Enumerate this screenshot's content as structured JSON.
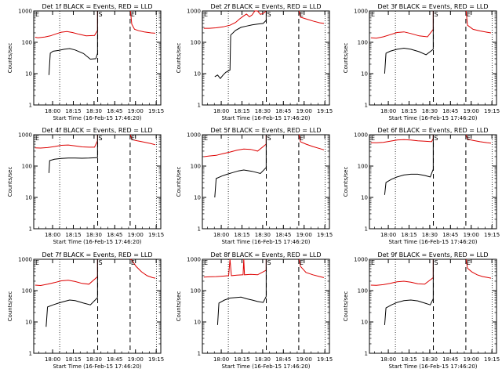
{
  "figure": {
    "layout": "3x3 grid",
    "colors": {
      "events": "#000000",
      "lld": "#dd0000",
      "axes": "#000000",
      "background": "#ffffff"
    },
    "ylabel": "Counts/sec",
    "xlabel": "Start Time (16-Feb-15 17:46:20)",
    "yticks": [
      "1",
      "10",
      "100",
      "1000"
    ],
    "xticks": [
      "18:00",
      "18:15",
      "18:30",
      "18:45",
      "19:00",
      "19:15"
    ],
    "markers": {
      "start": "E",
      "sun": "S",
      "end": "E"
    }
  },
  "chart_data": [
    {
      "type": "line",
      "title": "Det 1f BLACK = Events, RED = LLD",
      "xlabel": "Start Time (16-Feb-15 17:46:20)",
      "ylabel": "Counts/sec",
      "yscale": "log",
      "ylim": [
        1,
        1000
      ],
      "x_unit": "minutes from 17:46:20",
      "series": [
        {
          "key": "events",
          "x": [
            11,
            12,
            14,
            18,
            22,
            26,
            30,
            36,
            41,
            45,
            46.2
          ],
          "y": [
            9,
            45,
            52,
            55,
            60,
            63,
            57,
            44,
            29,
            30,
            45
          ]
        },
        {
          "key": "lld",
          "x": [
            1,
            3,
            8,
            12,
            16,
            20,
            24,
            28,
            33,
            38,
            44,
            46.2
          ],
          "y": [
            145,
            140,
            148,
            160,
            185,
            210,
            220,
            205,
            180,
            160,
            165,
            240
          ]
        }
      ],
      "dotted_lines_x": [
        18.8,
        88.8
      ],
      "dashed_lines_x": [
        46.3,
        69.8
      ],
      "lld_after": {
        "x": [
          71,
          73,
          76,
          80,
          85,
          88
        ],
        "y": [
          380,
          260,
          235,
          215,
          200,
          195
        ]
      }
    },
    {
      "type": "line",
      "title": "Det 2f BLACK = Events, RED = LLD",
      "xlabel": "Start Time (16-Feb-15 17:46:20)",
      "ylabel": "Counts/sec",
      "yscale": "log",
      "ylim": [
        1,
        1000
      ],
      "x_unit": "minutes from 17:46:20",
      "series": [
        {
          "key": "events",
          "x": [
            9,
            11,
            13,
            15,
            17,
            20,
            20.5,
            24,
            28,
            32,
            36,
            40,
            44,
            46.2
          ],
          "y": [
            8,
            9,
            7,
            9,
            11,
            13,
            170,
            240,
            300,
            330,
            360,
            380,
            400,
            500
          ]
        },
        {
          "key": "lld",
          "x": [
            1,
            5,
            10,
            15,
            20,
            24,
            27,
            30,
            32,
            34,
            36,
            38,
            40,
            42,
            44,
            46.2
          ],
          "y": [
            280,
            280,
            290,
            310,
            350,
            430,
            560,
            700,
            800,
            650,
            750,
            1000,
            1000,
            780,
            830,
            1000
          ]
        }
      ],
      "dotted_lines_x": [
        18.8,
        88.8
      ],
      "dashed_lines_x": [
        46.3,
        69.8
      ],
      "lld_after": {
        "x": [
          71,
          75,
          80,
          85,
          88
        ],
        "y": [
          640,
          560,
          480,
          420,
          400
        ]
      }
    },
    {
      "type": "line",
      "title": "Det 3f BLACK = Events, RED = LLD",
      "xlabel": "Start Time (16-Feb-15 17:46:20)",
      "ylabel": "Counts/sec",
      "yscale": "log",
      "ylim": [
        1,
        1000
      ],
      "x_unit": "minutes from 17:46:20",
      "series": [
        {
          "key": "events",
          "x": [
            11,
            12,
            15,
            20,
            25,
            30,
            36,
            41,
            46.2
          ],
          "y": [
            10,
            45,
            52,
            60,
            65,
            60,
            50,
            40,
            60
          ]
        },
        {
          "key": "lld",
          "x": [
            1,
            5,
            10,
            15,
            20,
            25,
            30,
            36,
            42,
            46.2
          ],
          "y": [
            140,
            135,
            150,
            175,
            205,
            215,
            190,
            160,
            150,
            260
          ]
        }
      ],
      "dotted_lines_x": [
        18.8,
        88.8
      ],
      "dashed_lines_x": [
        46.3,
        69.8
      ],
      "lld_after": {
        "x": [
          71,
          75,
          80,
          85,
          88
        ],
        "y": [
          350,
          260,
          230,
          210,
          200
        ]
      }
    },
    {
      "type": "line",
      "title": "Det 4f BLACK = Events, RED = LLD",
      "xlabel": "Start Time (16-Feb-15 17:46:20)",
      "ylabel": "Counts/sec",
      "yscale": "log",
      "ylim": [
        1,
        1000
      ],
      "x_unit": "minutes from 17:46:20",
      "series": [
        {
          "key": "events",
          "x": [
            11,
            11.5,
            15,
            20,
            25,
            30,
            35,
            40,
            46.2
          ],
          "y": [
            60,
            150,
            165,
            175,
            180,
            180,
            178,
            180,
            185
          ]
        },
        {
          "key": "lld",
          "x": [
            1,
            5,
            10,
            15,
            20,
            25,
            30,
            35,
            40,
            44,
            46.2
          ],
          "y": [
            380,
            375,
            390,
            420,
            460,
            470,
            440,
            410,
            400,
            400,
            650
          ]
        }
      ],
      "dotted_lines_x": [
        18.8,
        88.8
      ],
      "dashed_lines_x": [
        46.3,
        69.8
      ],
      "lld_after": {
        "x": [
          71,
          75,
          80,
          85,
          88
        ],
        "y": [
          700,
          640,
          580,
          520,
          480
        ]
      }
    },
    {
      "type": "line",
      "title": "Det 5f BLACK = Events, RED = LLD",
      "xlabel": "Start Time (16-Feb-15 17:46:20)",
      "ylabel": "Counts/sec",
      "yscale": "log",
      "ylim": [
        1,
        1000
      ],
      "x_unit": "minutes from 17:46:20",
      "series": [
        {
          "key": "events",
          "x": [
            9,
            10,
            14,
            18,
            22,
            26,
            30,
            36,
            42,
            46.2
          ],
          "y": [
            10,
            40,
            48,
            55,
            62,
            70,
            75,
            68,
            58,
            90
          ]
        },
        {
          "key": "lld",
          "x": [
            1,
            5,
            10,
            15,
            20,
            25,
            30,
            35,
            40,
            46.2
          ],
          "y": [
            200,
            210,
            220,
            250,
            280,
            320,
            350,
            340,
            300,
            500
          ]
        }
      ],
      "dotted_lines_x": [
        18.8,
        88.8
      ],
      "dashed_lines_x": [
        46.3,
        69.8
      ],
      "lld_after": {
        "x": [
          71,
          75,
          80,
          85,
          88
        ],
        "y": [
          600,
          500,
          420,
          360,
          330
        ]
      }
    },
    {
      "type": "line",
      "title": "Det 6f BLACK = Events, RED = LLD",
      "xlabel": "Start Time (16-Feb-15 17:46:20)",
      "ylabel": "Counts/sec",
      "yscale": "log",
      "ylim": [
        1,
        1000
      ],
      "x_unit": "minutes from 17:46:20",
      "series": [
        {
          "key": "events",
          "x": [
            11,
            12,
            16,
            20,
            25,
            30,
            35,
            40,
            44,
            46.2
          ],
          "y": [
            12,
            30,
            38,
            45,
            52,
            55,
            55,
            50,
            45,
            80
          ]
        },
        {
          "key": "lld",
          "x": [
            1,
            5,
            10,
            15,
            20,
            25,
            30,
            35,
            40,
            45,
            46.2
          ],
          "y": [
            560,
            555,
            570,
            620,
            680,
            700,
            680,
            640,
            620,
            600,
            750
          ]
        }
      ],
      "dotted_lines_x": [
        18.8,
        88.8
      ],
      "dashed_lines_x": [
        46.3,
        69.8
      ],
      "lld_after": {
        "x": [
          71,
          75,
          80,
          85,
          88
        ],
        "y": [
          720,
          660,
          600,
          560,
          540
        ]
      }
    },
    {
      "type": "line",
      "title": "Det 7f BLACK = Events, RED = LLD",
      "xlabel": "Start Time (16-Feb-15 17:46:20)",
      "ylabel": "Counts/sec",
      "yscale": "log",
      "ylim": [
        1,
        1000
      ],
      "x_unit": "minutes from 17:46:20",
      "series": [
        {
          "key": "events",
          "x": [
            9,
            10,
            14,
            18,
            22,
            26,
            30,
            36,
            41,
            46.2
          ],
          "y": [
            7,
            30,
            35,
            40,
            45,
            50,
            48,
            40,
            35,
            60
          ]
        },
        {
          "key": "lld",
          "x": [
            1,
            5,
            10,
            15,
            20,
            25,
            30,
            35,
            40,
            46.2
          ],
          "y": [
            150,
            145,
            160,
            180,
            205,
            215,
            195,
            170,
            160,
            280
          ]
        }
      ],
      "dotted_lines_x": [
        18.8,
        88.8
      ],
      "dashed_lines_x": [
        46.3,
        69.8
      ],
      "lld_after": {
        "x": [
          71,
          74,
          78,
          82,
          86,
          88
        ],
        "y": [
          950,
          600,
          400,
          300,
          260,
          250
        ]
      }
    },
    {
      "type": "line",
      "title": "Det 8f BLACK = Events, RED = LLD",
      "xlabel": "Start Time (16-Feb-15 17:46:20)",
      "ylabel": "Counts/sec",
      "yscale": "log",
      "ylim": [
        1,
        1000
      ],
      "x_unit": "minutes from 17:46:20",
      "series": [
        {
          "key": "events",
          "x": [
            11,
            12,
            16,
            20,
            24,
            28,
            32,
            36,
            40,
            44,
            46.2
          ],
          "y": [
            8,
            40,
            50,
            58,
            60,
            62,
            55,
            50,
            45,
            42,
            65
          ]
        },
        {
          "key": "lld",
          "x": [
            1,
            5,
            10,
            15,
            19,
            20,
            21,
            25,
            29.5,
            30,
            30.5,
            35,
            40,
            46.2
          ],
          "y": [
            270,
            275,
            280,
            290,
            300,
            1000,
            300,
            310,
            320,
            1000,
            320,
            330,
            320,
            450
          ]
        }
      ],
      "dotted_lines_x": [
        18.8,
        88.8
      ],
      "dashed_lines_x": [
        46.3,
        69.8
      ],
      "lld_after": {
        "x": [
          71,
          75,
          80,
          85,
          88
        ],
        "y": [
          600,
          380,
          320,
          280,
          260
        ]
      }
    },
    {
      "type": "line",
      "title": "Det 9f BLACK = Events, RED = LLD",
      "xlabel": "Start Time (16-Feb-15 17:46:20)",
      "ylabel": "Counts/sec",
      "yscale": "log",
      "ylim": [
        1,
        1000
      ],
      "x_unit": "minutes from 17:46:20",
      "series": [
        {
          "key": "events",
          "x": [
            11,
            12,
            16,
            20,
            25,
            30,
            35,
            40,
            44,
            46.2
          ],
          "y": [
            8,
            28,
            35,
            42,
            48,
            50,
            47,
            40,
            35,
            55
          ]
        },
        {
          "key": "lld",
          "x": [
            1,
            5,
            10,
            15,
            20,
            25,
            30,
            35,
            40,
            46.2
          ],
          "y": [
            150,
            148,
            155,
            170,
            190,
            200,
            185,
            165,
            160,
            260
          ]
        }
      ],
      "dotted_lines_x": [
        18.8,
        88.8
      ],
      "dashed_lines_x": [
        46.3,
        69.8
      ],
      "lld_after": {
        "x": [
          71,
          74,
          78,
          82,
          86,
          88
        ],
        "y": [
          520,
          400,
          320,
          280,
          260,
          250
        ]
      }
    }
  ]
}
